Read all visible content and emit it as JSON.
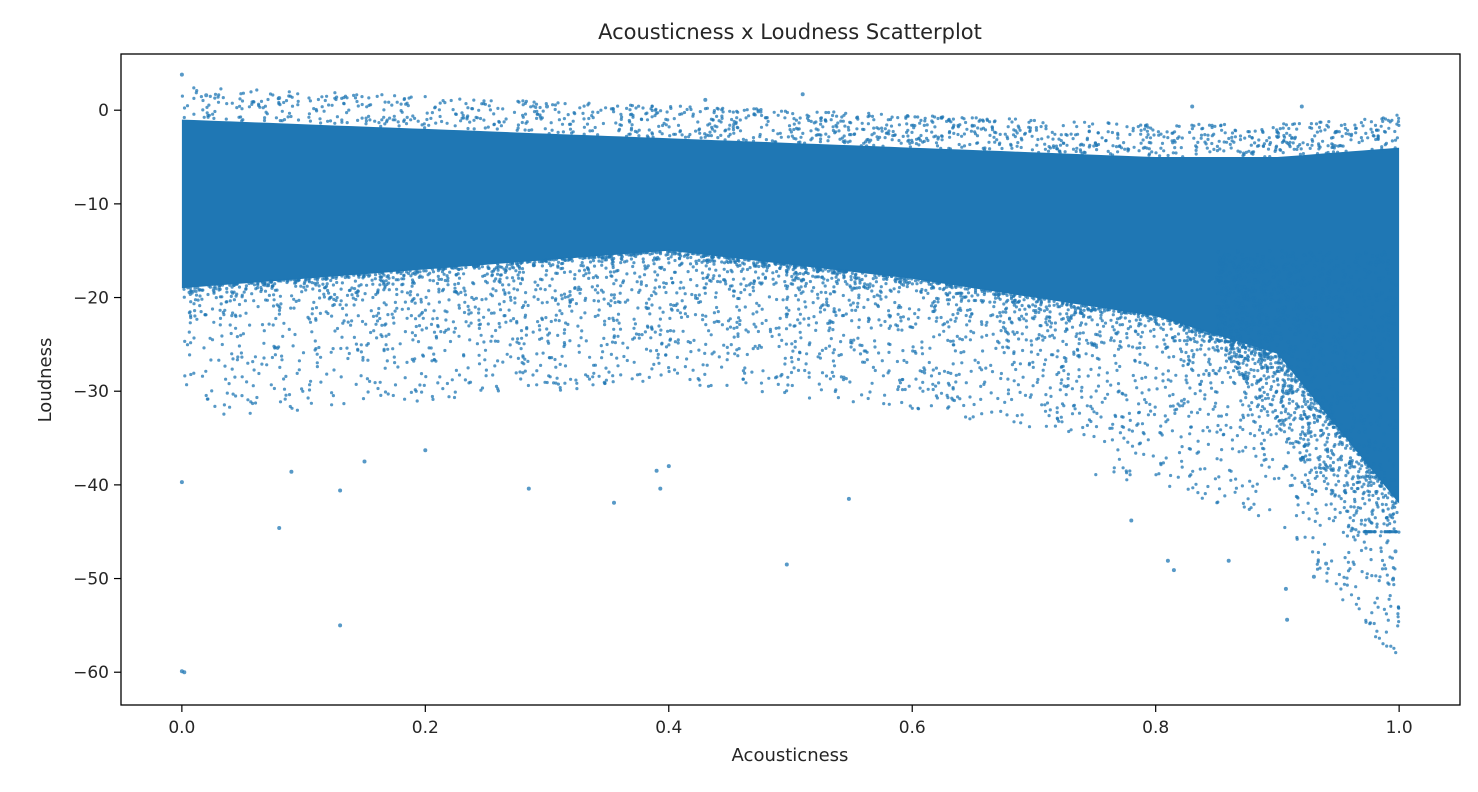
{
  "chart_data": {
    "type": "scatter",
    "title": "Acousticness x Loudness Scatterplot",
    "xlabel": "Acousticness",
    "ylabel": "Loudness",
    "xlim": [
      -0.05,
      1.05
    ],
    "ylim": [
      -63.5,
      6.0
    ],
    "xticks": [
      0.0,
      0.2,
      0.4,
      0.6,
      0.8,
      1.0
    ],
    "xtick_labels": [
      "0.0",
      "0.2",
      "0.4",
      "0.6",
      "0.8",
      "1.0"
    ],
    "yticks": [
      0,
      -10,
      -20,
      -30,
      -40,
      -50,
      -60
    ],
    "ytick_labels": [
      "0",
      "−10",
      "−20",
      "−30",
      "−40",
      "−50",
      "−60"
    ],
    "grid": false,
    "legend": "none",
    "marker_color": "#1f77b4",
    "series": [
      {
        "dense_band": {
          "description_points": [
            {
              "x": 0.0,
              "y_top": -1,
              "y_bottom": -19
            },
            {
              "x": 0.2,
              "y_top": -2,
              "y_bottom": -17
            },
            {
              "x": 0.4,
              "y_top": -3,
              "y_bottom": -15
            },
            {
              "x": 0.6,
              "y_top": -4,
              "y_bottom": -18
            },
            {
              "x": 0.8,
              "y_top": -5,
              "y_bottom": -22
            },
            {
              "x": 0.9,
              "y_top": -5,
              "y_bottom": -26
            },
            {
              "x": 1.0,
              "y_top": -4,
              "y_bottom": -42
            }
          ]
        },
        "outliers": [
          {
            "x": 0.0,
            "y": 3.8
          },
          {
            "x": 0.02,
            "y": 1.6
          },
          {
            "x": 0.08,
            "y": 1.3
          },
          {
            "x": 0.3,
            "y": 0.4
          },
          {
            "x": 0.43,
            "y": 1.1
          },
          {
            "x": 0.51,
            "y": 1.7
          },
          {
            "x": 0.83,
            "y": 0.4
          },
          {
            "x": 0.92,
            "y": 0.4
          },
          {
            "x": 0.0,
            "y": -39.7
          },
          {
            "x": 0.08,
            "y": -44.6
          },
          {
            "x": 0.09,
            "y": -38.6
          },
          {
            "x": 0.13,
            "y": -55.0
          },
          {
            "x": 0.13,
            "y": -40.6
          },
          {
            "x": 0.15,
            "y": -37.5
          },
          {
            "x": 0.2,
            "y": -36.3
          },
          {
            "x": 0.285,
            "y": -40.4
          },
          {
            "x": 0.355,
            "y": -41.9
          },
          {
            "x": 0.39,
            "y": -38.5
          },
          {
            "x": 0.393,
            "y": -40.4
          },
          {
            "x": 0.4,
            "y": -38.0
          },
          {
            "x": 0.497,
            "y": -48.5
          },
          {
            "x": 0.548,
            "y": -41.5
          },
          {
            "x": 0.0,
            "y": -59.9
          },
          {
            "x": 0.002,
            "y": -60.0
          },
          {
            "x": 0.78,
            "y": -43.8
          },
          {
            "x": 0.81,
            "y": -48.1
          },
          {
            "x": 0.815,
            "y": -49.1
          },
          {
            "x": 0.86,
            "y": -48.1
          },
          {
            "x": 0.907,
            "y": -51.1
          },
          {
            "x": 0.908,
            "y": -54.4
          },
          {
            "x": 0.93,
            "y": -49.8
          },
          {
            "x": 0.94,
            "y": -48.4
          },
          {
            "x": 0.995,
            "y": -50.1
          },
          {
            "x": 0.997,
            "y": -47.1
          }
        ]
      }
    ]
  }
}
